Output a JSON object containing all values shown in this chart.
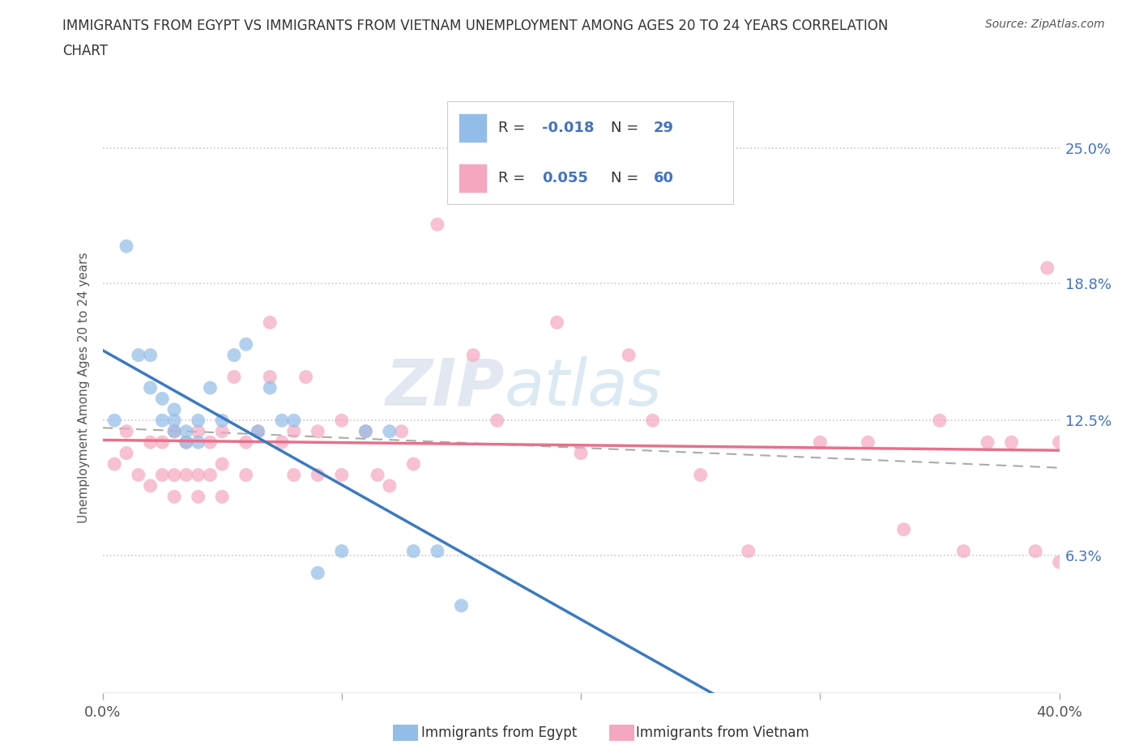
{
  "title_line1": "IMMIGRANTS FROM EGYPT VS IMMIGRANTS FROM VIETNAM UNEMPLOYMENT AMONG AGES 20 TO 24 YEARS CORRELATION",
  "title_line2": "CHART",
  "source": "Source: ZipAtlas.com",
  "R_egypt": -0.018,
  "N_egypt": 29,
  "R_vietnam": 0.055,
  "N_vietnam": 60,
  "color_egypt": "#92bde8",
  "color_vietnam": "#f5a7bf",
  "trendline_egypt_color": "#3a7abf",
  "trendline_vietnam_color": "#e8708a",
  "dashed_line_color": "#aaaaaa",
  "xlim": [
    0.0,
    0.4
  ],
  "ylim": [
    0.0,
    0.28
  ],
  "xlabel_ticks": [
    0.0,
    0.1,
    0.2,
    0.3,
    0.4
  ],
  "xlabel_tick_labels": [
    "0.0%",
    "",
    "",
    "",
    "40.0%"
  ],
  "ylabel_ticks": [
    0.063,
    0.125,
    0.188,
    0.25
  ],
  "ylabel_tick_labels": [
    "6.3%",
    "12.5%",
    "18.8%",
    "25.0%"
  ],
  "ylabel": "Unemployment Among Ages 20 to 24 years",
  "legend_egypt": "Immigrants from Egypt",
  "legend_vietnam": "Immigrants from Vietnam",
  "watermark_zip": "ZIP",
  "watermark_atlas": "atlas",
  "egypt_x": [
    0.005,
    0.01,
    0.015,
    0.02,
    0.02,
    0.025,
    0.025,
    0.03,
    0.03,
    0.03,
    0.035,
    0.035,
    0.04,
    0.04,
    0.045,
    0.05,
    0.055,
    0.06,
    0.065,
    0.07,
    0.075,
    0.08,
    0.09,
    0.1,
    0.11,
    0.12,
    0.13,
    0.14,
    0.15
  ],
  "egypt_y": [
    0.125,
    0.205,
    0.155,
    0.14,
    0.155,
    0.125,
    0.135,
    0.12,
    0.125,
    0.13,
    0.115,
    0.12,
    0.115,
    0.125,
    0.14,
    0.125,
    0.155,
    0.16,
    0.12,
    0.14,
    0.125,
    0.125,
    0.055,
    0.065,
    0.12,
    0.12,
    0.065,
    0.065,
    0.04
  ],
  "vietnam_x": [
    0.005,
    0.01,
    0.01,
    0.015,
    0.02,
    0.02,
    0.025,
    0.025,
    0.03,
    0.03,
    0.03,
    0.035,
    0.035,
    0.04,
    0.04,
    0.04,
    0.045,
    0.045,
    0.05,
    0.05,
    0.05,
    0.055,
    0.06,
    0.06,
    0.065,
    0.07,
    0.07,
    0.075,
    0.08,
    0.08,
    0.085,
    0.09,
    0.09,
    0.1,
    0.1,
    0.11,
    0.115,
    0.12,
    0.125,
    0.13,
    0.14,
    0.155,
    0.165,
    0.19,
    0.2,
    0.22,
    0.23,
    0.25,
    0.27,
    0.3,
    0.32,
    0.335,
    0.35,
    0.36,
    0.37,
    0.38,
    0.39,
    0.395,
    0.4,
    0.4
  ],
  "vietnam_y": [
    0.105,
    0.11,
    0.12,
    0.1,
    0.095,
    0.115,
    0.1,
    0.115,
    0.09,
    0.1,
    0.12,
    0.1,
    0.115,
    0.09,
    0.1,
    0.12,
    0.1,
    0.115,
    0.09,
    0.105,
    0.12,
    0.145,
    0.1,
    0.115,
    0.12,
    0.145,
    0.17,
    0.115,
    0.1,
    0.12,
    0.145,
    0.1,
    0.12,
    0.1,
    0.125,
    0.12,
    0.1,
    0.095,
    0.12,
    0.105,
    0.215,
    0.155,
    0.125,
    0.17,
    0.11,
    0.155,
    0.125,
    0.1,
    0.065,
    0.115,
    0.115,
    0.075,
    0.125,
    0.065,
    0.115,
    0.115,
    0.065,
    0.195,
    0.115,
    0.06
  ]
}
